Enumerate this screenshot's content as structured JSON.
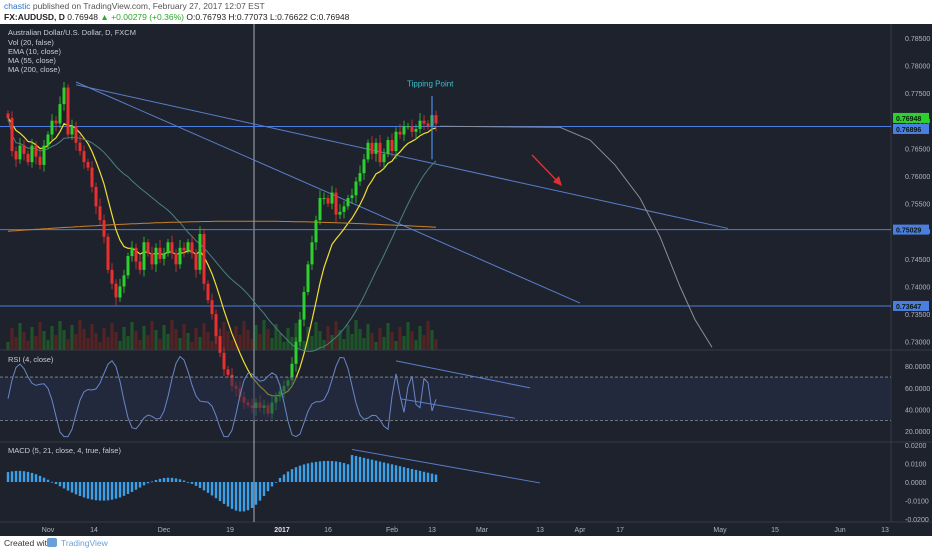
{
  "header": {
    "author": "chastic",
    "published": "published on TradingView.com, February 27, 2017 12:07 EST",
    "symbol": "FX:AUDUSD, D",
    "last": "0.76948",
    "change": "▲ +0.00279 (+0.36%)",
    "ohlc": "O:0.76793 H:0.77073 L:0.76622 C:0.76948"
  },
  "legend": {
    "title": "Australian Dollar/U.S. Dollar, D, FXCM",
    "lines": [
      "Vol (20, false)",
      "EMA (10, close)",
      "MA (55, close)",
      "MA (200, close)"
    ]
  },
  "annotation": "Tipping Point",
  "rsi_label": "RSI (4, close)",
  "macd_label": "MACD (5, 21, close, 4, true, false)",
  "footer": {
    "created": "Created with",
    "brand": "TradingView"
  },
  "colors": {
    "bg": "#1e222d",
    "up": "#2dd12d",
    "down": "#e83030",
    "ema": "#f0e030",
    "ma55": "#4a8080",
    "ma200": "#c8822a",
    "trend": "#5a7ec8",
    "hline": "#4a7ee0",
    "rsi": "#6a86c8",
    "macd": "#3aa0e8",
    "annot": "#38c0d0",
    "arrow": "#e03030"
  },
  "chart_data": {
    "type": "candlestick",
    "price_axis": {
      "ticks": [
        "0.78500",
        "0.78000",
        "0.77500",
        "0.77000",
        "0.76500",
        "0.76000",
        "0.75500",
        "0.75000",
        "0.74500",
        "0.74000",
        "0.73500",
        "0.73000"
      ],
      "ylim": [
        0.7285,
        0.7875
      ]
    },
    "price_badges": [
      {
        "value": "0.76948",
        "color": "#2dd12d"
      },
      {
        "value": "0.76896",
        "color": "#4a7ee0"
      },
      {
        "value": "0.75029",
        "color": "#4a7ee0"
      },
      {
        "value": "0.73647",
        "color": "#4a7ee0"
      }
    ],
    "horizontal_levels": [
      0.76896,
      0.75029,
      0.73647
    ],
    "time_axis": [
      "Nov",
      "14",
      "Dec",
      "19",
      "2017",
      "16",
      "Feb",
      "13",
      "Mar",
      "13",
      "Apr",
      "17",
      "May",
      "15",
      "Jun",
      "13"
    ],
    "candles_close": [
      0.7705,
      0.7645,
      0.763,
      0.7655,
      0.764,
      0.7625,
      0.7655,
      0.7635,
      0.762,
      0.7655,
      0.7675,
      0.77,
      0.7695,
      0.773,
      0.776,
      0.7675,
      0.769,
      0.766,
      0.7645,
      0.7625,
      0.7615,
      0.758,
      0.7545,
      0.752,
      0.749,
      0.743,
      0.7405,
      0.738,
      0.74,
      0.742,
      0.7455,
      0.747,
      0.7445,
      0.743,
      0.748,
      0.746,
      0.744,
      0.747,
      0.745,
      0.746,
      0.748,
      0.746,
      0.744,
      0.747,
      0.7465,
      0.748,
      0.746,
      0.743,
      0.7495,
      0.7405,
      0.7375,
      0.735,
      0.731,
      0.728,
      0.725,
      0.724,
      0.722,
      0.7215,
      0.72,
      0.719,
      0.7185,
      0.718,
      0.719,
      0.718,
      0.7185,
      0.717,
      0.719,
      0.72,
      0.721,
      0.722,
      0.723,
      0.726,
      0.73,
      0.734,
      0.739,
      0.744,
      0.748,
      0.752,
      0.756,
      0.756,
      0.755,
      0.757,
      0.753,
      0.7535,
      0.7545,
      0.756,
      0.7565,
      0.759,
      0.7605,
      0.763,
      0.766,
      0.764,
      0.766,
      0.7625,
      0.764,
      0.7665,
      0.7645,
      0.768,
      0.7675,
      0.769,
      0.769,
      0.768,
      0.7685,
      0.77,
      0.7695,
      0.769,
      0.771,
      0.7695
    ],
    "ema10_value": 0.769,
    "ma55_value": 0.749,
    "ma200_value": 0.7515,
    "rsi_axis": {
      "ticks": [
        "80.0000",
        "60.0000",
        "40.0000",
        "20.0000"
      ],
      "ylim": [
        10,
        95
      ],
      "bands": [
        70,
        30
      ]
    },
    "macd_axis": {
      "ticks": [
        "0.0200",
        "0.0100",
        "0.0000",
        "-0.0100",
        "-0.0200"
      ],
      "ylim": [
        -0.0215,
        0.0215
      ]
    }
  }
}
